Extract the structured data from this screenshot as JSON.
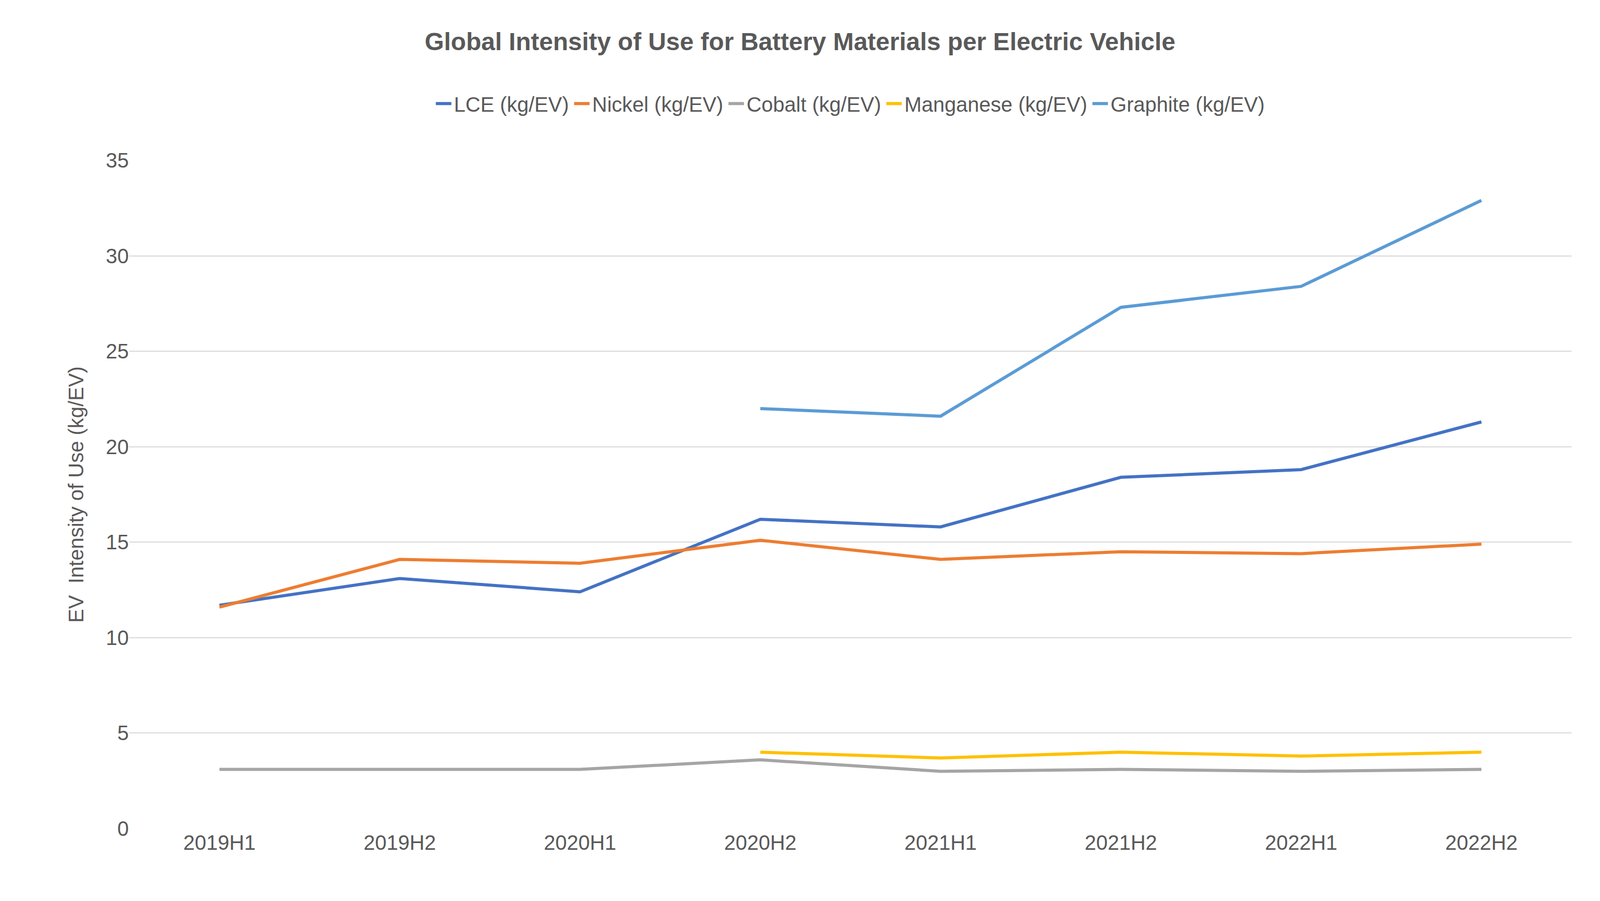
{
  "chart_data": {
    "type": "line",
    "title": "Global Intensity of Use for Battery Materials per Electric Vehicle",
    "y_label": "EV  Intensity of Use (kg/EV)",
    "categories": [
      "2019H1",
      "2019H2",
      "2020H1",
      "2020H2",
      "2021H1",
      "2021H2",
      "2022H1",
      "2022H2"
    ],
    "series": [
      {
        "name": "LCE (kg/EV)",
        "color": "#4472C4",
        "values": [
          11.7,
          13.1,
          12.4,
          16.2,
          15.8,
          18.4,
          18.8,
          21.3
        ]
      },
      {
        "name": "Nickel (kg/EV)",
        "color": "#ED7D31",
        "values": [
          11.6,
          14.1,
          13.9,
          15.1,
          14.1,
          14.5,
          14.4,
          14.9
        ]
      },
      {
        "name": "Cobalt (kg/EV)",
        "color": "#A5A5A5",
        "values": [
          3.1,
          3.1,
          3.1,
          3.6,
          3.0,
          3.1,
          3.0,
          3.1
        ]
      },
      {
        "name": "Manganese (kg/EV)",
        "color": "#FFC000",
        "values": [
          null,
          null,
          null,
          4.0,
          3.7,
          4.0,
          3.8,
          4.0
        ]
      },
      {
        "name": "Graphite (kg/EV)",
        "color": "#5B9BD5",
        "values": [
          null,
          null,
          null,
          22.0,
          21.6,
          27.3,
          28.4,
          32.9
        ]
      }
    ],
    "ylim": [
      0,
      35
    ],
    "yticks": [
      0,
      5,
      10,
      15,
      20,
      25,
      30,
      35
    ],
    "grid": true,
    "legend": "top"
  }
}
